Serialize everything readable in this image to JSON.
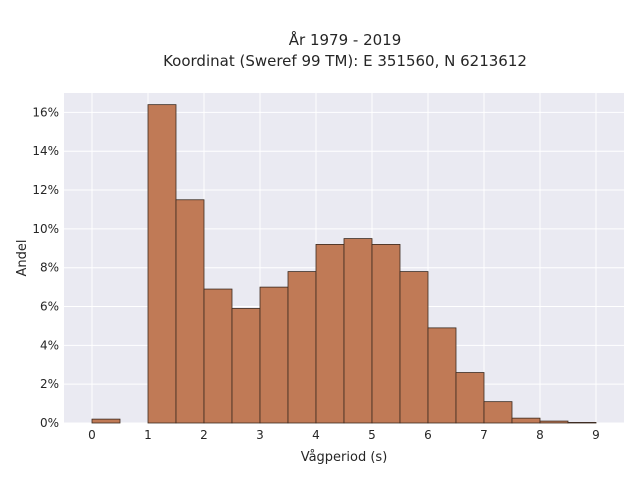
{
  "chart_data": {
    "type": "bar",
    "title_lines": [
      "År 1979 - 2019",
      "Koordinat (Sweref 99 TM): E 351560, N 6213612"
    ],
    "xlabel": "Vågperiod (s)",
    "ylabel": "Andel",
    "x_ticks": [
      "0",
      "1",
      "2",
      "3",
      "4",
      "5",
      "6",
      "7",
      "8",
      "9"
    ],
    "y_ticks": [
      "0%",
      "2%",
      "4%",
      "6%",
      "8%",
      "10%",
      "12%",
      "14%",
      "16%"
    ],
    "xlim": [
      -0.5,
      9.5
    ],
    "ylim": [
      0,
      0.17
    ],
    "bin_width": 0.5,
    "bins": [
      {
        "x_start": 0.0,
        "value": 0.002
      },
      {
        "x_start": 1.0,
        "value": 0.164
      },
      {
        "x_start": 1.5,
        "value": 0.115
      },
      {
        "x_start": 2.0,
        "value": 0.069
      },
      {
        "x_start": 2.5,
        "value": 0.059
      },
      {
        "x_start": 3.0,
        "value": 0.07
      },
      {
        "x_start": 3.5,
        "value": 0.078
      },
      {
        "x_start": 4.0,
        "value": 0.092
      },
      {
        "x_start": 4.5,
        "value": 0.095
      },
      {
        "x_start": 5.0,
        "value": 0.092
      },
      {
        "x_start": 5.5,
        "value": 0.078
      },
      {
        "x_start": 6.0,
        "value": 0.049
      },
      {
        "x_start": 6.5,
        "value": 0.026
      },
      {
        "x_start": 7.0,
        "value": 0.011
      },
      {
        "x_start": 7.5,
        "value": 0.0025
      },
      {
        "x_start": 8.0,
        "value": 0.001
      },
      {
        "x_start": 8.5,
        "value": 0.0003
      }
    ],
    "grid": true,
    "colors": {
      "bar_fill": "#c07a56",
      "bar_edge": "#3b2a1f",
      "plot_background": "#eaeaf2",
      "grid": "#ffffff"
    }
  }
}
